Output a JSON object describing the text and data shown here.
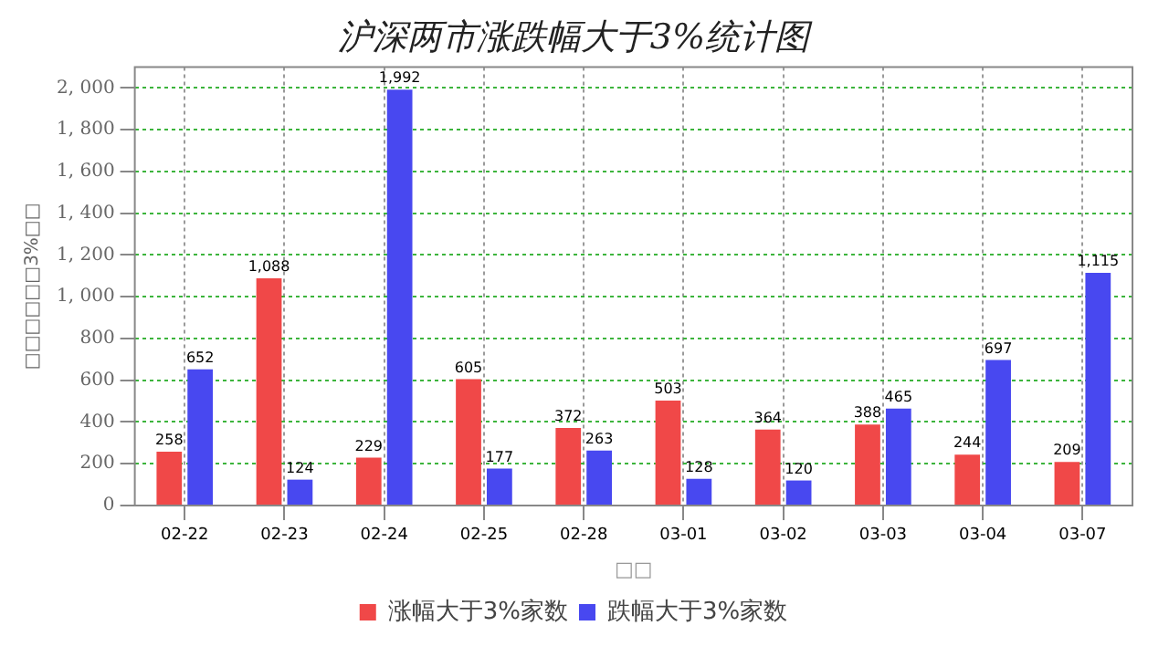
{
  "chart_data": {
    "type": "bar",
    "title": "沪深两市涨跌幅大于3%统计图",
    "xlabel": "□□",
    "ylabel": "□□□□□□3%□□",
    "categories": [
      "02-22",
      "02-23",
      "02-24",
      "02-25",
      "02-28",
      "03-01",
      "03-02",
      "03-03",
      "03-04",
      "03-07"
    ],
    "series": [
      {
        "name": "涨幅大于3%家数",
        "color": "#f04848",
        "values": [
          258,
          1088,
          229,
          605,
          372,
          503,
          364,
          388,
          244,
          209
        ],
        "value_labels": [
          "258",
          "1,088",
          "229",
          "605",
          "372",
          "503",
          "364",
          "388",
          "244",
          "209"
        ]
      },
      {
        "name": "跌幅大于3%家数",
        "color": "#4848f0",
        "values": [
          652,
          124,
          1992,
          177,
          263,
          128,
          120,
          465,
          697,
          1115
        ],
        "value_labels": [
          "652",
          "124",
          "1,992",
          "177",
          "263",
          "128",
          "120",
          "465",
          "697",
          "1,115"
        ]
      }
    ],
    "ylim": [
      0,
      2100
    ],
    "yticks": [
      0,
      200,
      400,
      600,
      800,
      {
        "value": 1000,
        "label": "1, 000"
      },
      {
        "value": 1200,
        "label": "1, 200"
      },
      {
        "value": 1400,
        "label": "1, 400"
      },
      {
        "value": 1600,
        "label": "1, 600"
      },
      {
        "value": 1800,
        "label": "1, 800"
      },
      {
        "value": 2000,
        "label": "2, 000"
      }
    ],
    "grid": true,
    "legend": "bottom"
  }
}
